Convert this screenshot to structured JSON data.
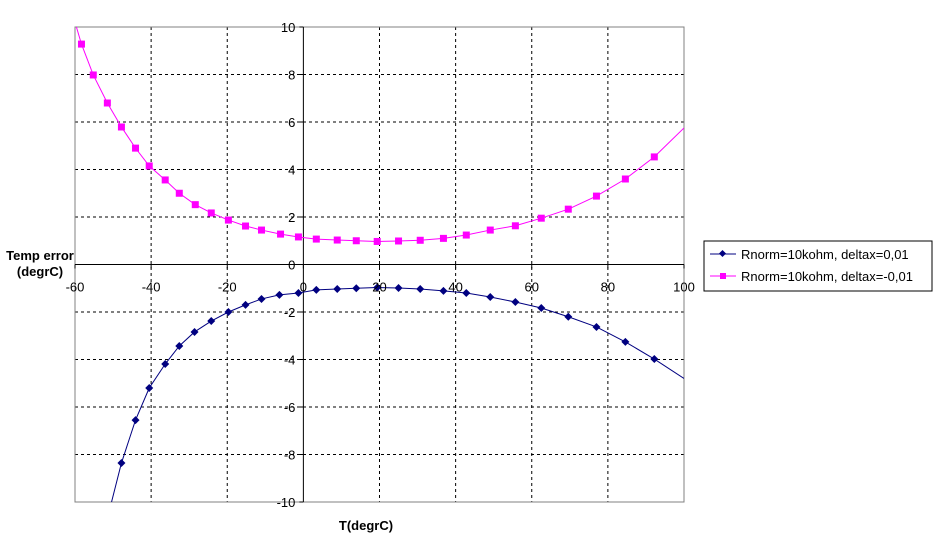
{
  "chart_data": {
    "type": "line",
    "title": "",
    "xlabel": "T(degrC)",
    "ylabel_lines": [
      "Temp error",
      "(degrC)"
    ],
    "xlim": [
      -60,
      100
    ],
    "ylim": [
      -10,
      10
    ],
    "xticks": [
      -60,
      -40,
      -20,
      0,
      20,
      40,
      60,
      80,
      100
    ],
    "yticks": [
      -10,
      -8,
      -6,
      -4,
      -2,
      0,
      2,
      4,
      6,
      8,
      10
    ],
    "grid": true,
    "legend_position": "right",
    "series": [
      {
        "name": "Rnorm=10kohm, deltax=0,01",
        "color": "#000080",
        "marker": "diamond",
        "line": [
          [
            -50.4,
            -10
          ],
          [
            -47.8,
            -8.36
          ],
          [
            -44.1,
            -6.55
          ],
          [
            -40.5,
            -5.2
          ],
          [
            -36.3,
            -4.19
          ],
          [
            -32.6,
            -3.43
          ],
          [
            -28.6,
            -2.84
          ],
          [
            -24.2,
            -2.38
          ],
          [
            -19.7,
            -2.0
          ],
          [
            -15.2,
            -1.7
          ],
          [
            -11,
            -1.45
          ],
          [
            -6.3,
            -1.28
          ],
          [
            -1.3,
            -1.2
          ],
          [
            3.4,
            -1.07
          ],
          [
            8.9,
            -1.03
          ],
          [
            13.9,
            -1.0
          ],
          [
            19.4,
            -0.97
          ],
          [
            25,
            -0.99
          ],
          [
            30.7,
            -1.03
          ],
          [
            36.8,
            -1.11
          ],
          [
            42.8,
            -1.2
          ],
          [
            49.1,
            -1.37
          ],
          [
            55.7,
            -1.58
          ],
          [
            62.5,
            -1.83
          ],
          [
            69.6,
            -2.2
          ],
          [
            77,
            -2.63
          ],
          [
            84.6,
            -3.26
          ],
          [
            92.2,
            -3.98
          ],
          [
            100,
            -4.8
          ]
        ],
        "points": [
          [
            -47.8,
            -8.36
          ],
          [
            -44.1,
            -6.55
          ],
          [
            -40.5,
            -5.2
          ],
          [
            -36.3,
            -4.19
          ],
          [
            -32.6,
            -3.43
          ],
          [
            -28.6,
            -2.84
          ],
          [
            -24.2,
            -2.38
          ],
          [
            -19.7,
            -2.0
          ],
          [
            -15.2,
            -1.7
          ],
          [
            -11,
            -1.45
          ],
          [
            -6.3,
            -1.28
          ],
          [
            -1.3,
            -1.2
          ],
          [
            3.4,
            -1.07
          ],
          [
            8.9,
            -1.03
          ],
          [
            13.9,
            -1.0
          ],
          [
            19.4,
            -0.97
          ],
          [
            25,
            -0.99
          ],
          [
            30.7,
            -1.03
          ],
          [
            36.8,
            -1.11
          ],
          [
            42.8,
            -1.2
          ],
          [
            49.1,
            -1.37
          ],
          [
            55.7,
            -1.58
          ],
          [
            62.5,
            -1.83
          ],
          [
            69.6,
            -2.2
          ],
          [
            77,
            -2.63
          ],
          [
            84.6,
            -3.26
          ],
          [
            92.2,
            -3.98
          ]
        ]
      },
      {
        "name": "Rnorm=10kohm, deltax=-0,01",
        "color": "#FF00FF",
        "marker": "square",
        "line": [
          [
            -60,
            10.2
          ],
          [
            -58.3,
            9.28
          ],
          [
            -55.2,
            7.98
          ],
          [
            -51.5,
            6.8
          ],
          [
            -47.8,
            5.79
          ],
          [
            -44.1,
            4.9
          ],
          [
            -40.5,
            4.15
          ],
          [
            -36.3,
            3.56
          ],
          [
            -32.6,
            3.0
          ],
          [
            -28.4,
            2.52
          ],
          [
            -24.2,
            2.17
          ],
          [
            -19.7,
            1.87
          ],
          [
            -15.2,
            1.62
          ],
          [
            -11,
            1.45
          ],
          [
            -6,
            1.28
          ],
          [
            -1.3,
            1.16
          ],
          [
            3.4,
            1.07
          ],
          [
            8.9,
            1.03
          ],
          [
            13.9,
            1.0
          ],
          [
            19.4,
            0.97
          ],
          [
            25,
            0.99
          ],
          [
            30.7,
            1.02
          ],
          [
            36.8,
            1.1
          ],
          [
            42.8,
            1.24
          ],
          [
            49.1,
            1.45
          ],
          [
            55.7,
            1.63
          ],
          [
            62.5,
            1.95
          ],
          [
            69.6,
            2.33
          ],
          [
            77,
            2.88
          ],
          [
            84.6,
            3.6
          ],
          [
            92.2,
            4.53
          ],
          [
            100,
            5.75
          ]
        ],
        "points": [
          [
            -58.3,
            9.28
          ],
          [
            -55.2,
            7.98
          ],
          [
            -51.5,
            6.8
          ],
          [
            -47.8,
            5.79
          ],
          [
            -44.1,
            4.9
          ],
          [
            -40.5,
            4.15
          ],
          [
            -36.3,
            3.56
          ],
          [
            -32.6,
            3.0
          ],
          [
            -28.4,
            2.52
          ],
          [
            -24.2,
            2.17
          ],
          [
            -19.7,
            1.87
          ],
          [
            -15.2,
            1.62
          ],
          [
            -11,
            1.45
          ],
          [
            -6,
            1.28
          ],
          [
            -1.3,
            1.16
          ],
          [
            3.4,
            1.07
          ],
          [
            8.9,
            1.03
          ],
          [
            13.9,
            1.0
          ],
          [
            19.4,
            0.97
          ],
          [
            25,
            0.99
          ],
          [
            30.7,
            1.02
          ],
          [
            36.8,
            1.1
          ],
          [
            42.8,
            1.24
          ],
          [
            49.1,
            1.45
          ],
          [
            55.7,
            1.63
          ],
          [
            62.5,
            1.95
          ],
          [
            69.6,
            2.33
          ],
          [
            77,
            2.88
          ],
          [
            84.6,
            3.6
          ],
          [
            92.2,
            4.53
          ]
        ]
      }
    ]
  }
}
